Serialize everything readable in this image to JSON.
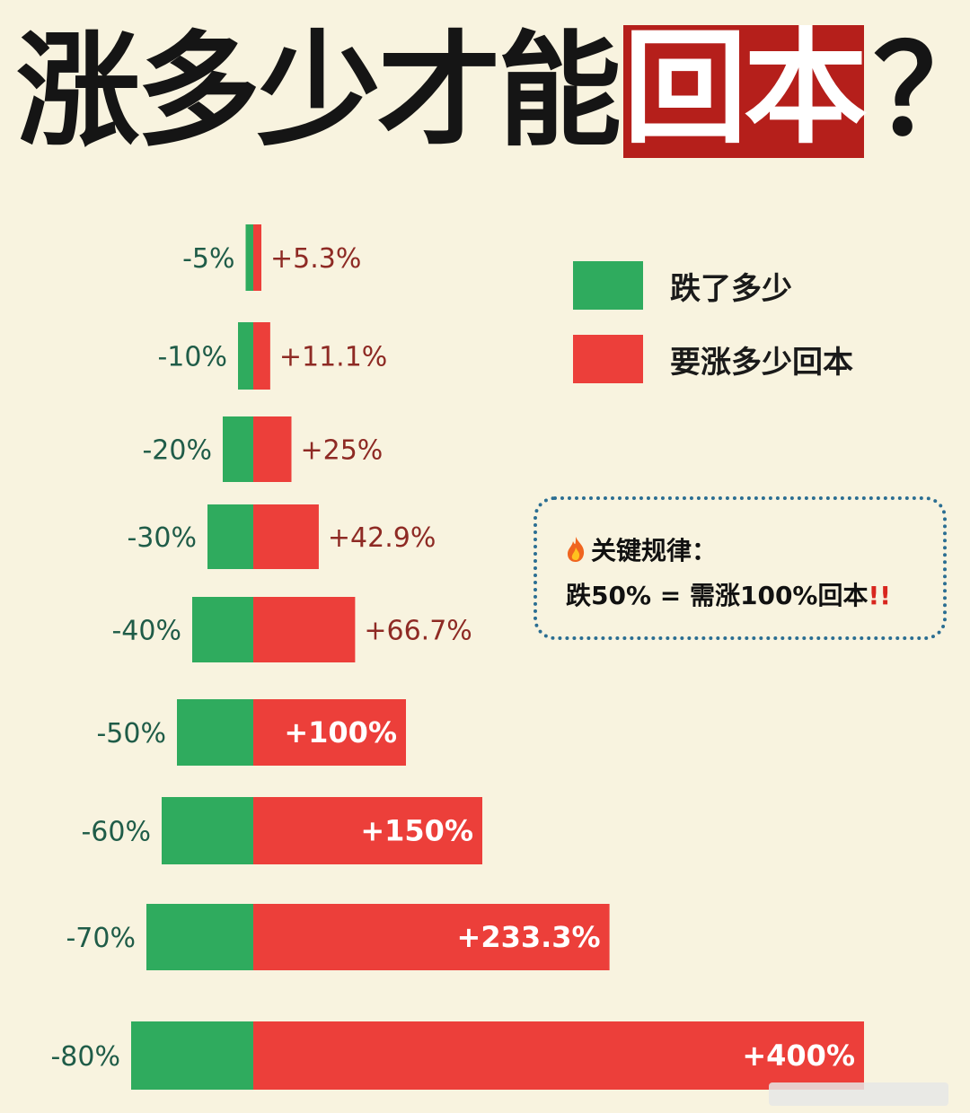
{
  "title": {
    "part1": "涨多少才能",
    "part2": "回本",
    "part3": "？"
  },
  "legend": [
    {
      "label": "跌了多少",
      "color": "#2fab5e"
    },
    {
      "label": "要涨多少回本",
      "color": "#ec3f3a"
    }
  ],
  "callout": {
    "icon": "fire-icon",
    "line1": "关键规律：",
    "line2": "跌50% = 需涨100%回本",
    "emphasis": "!!"
  },
  "colors": {
    "background": "#f8f3df",
    "drop": "#2fab5e",
    "recover": "#ec3f3a",
    "drop_text": "#1f5c48",
    "recover_text": "#8e2a24",
    "title_highlight": "#b51f1b"
  },
  "chart_data": {
    "type": "bar",
    "orientation": "horizontal",
    "categories": [
      "-5%",
      "-10%",
      "-20%",
      "-30%",
      "-40%",
      "-50%",
      "-60%",
      "-70%",
      "-80%"
    ],
    "series": [
      {
        "name": "跌了多少",
        "values": [
          -5,
          -10,
          -20,
          -30,
          -40,
          -50,
          -60,
          -70,
          -80
        ]
      },
      {
        "name": "要涨多少回本",
        "values": [
          5.3,
          11.1,
          25,
          42.9,
          66.7,
          100,
          150,
          233.3,
          400
        ]
      }
    ],
    "recover_labels": [
      "+5.3%",
      "+11.1%",
      "+25%",
      "+42.9%",
      "+66.7%",
      "+100%",
      "+150%",
      "+233.3%",
      "+400%"
    ],
    "title": "涨多少才能回本？",
    "legend_position": "top-right",
    "grid": false
  }
}
